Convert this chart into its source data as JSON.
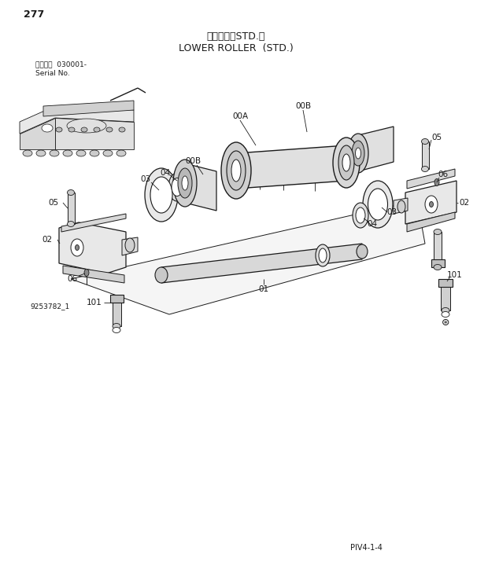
{
  "page_number": "277",
  "title_jp": "下ローラ（STD.）",
  "title_en": "LOWER ROLLER  (STD.)",
  "serial_label1": "適用号機  030001-",
  "serial_label2": "Serial No.",
  "page_ref": "PIV4-1-4",
  "part_id": "9253782_1",
  "bg": "#ffffff",
  "lc": "#1a1a1a",
  "figw": 6.2,
  "figh": 7.24,
  "dpi": 100
}
